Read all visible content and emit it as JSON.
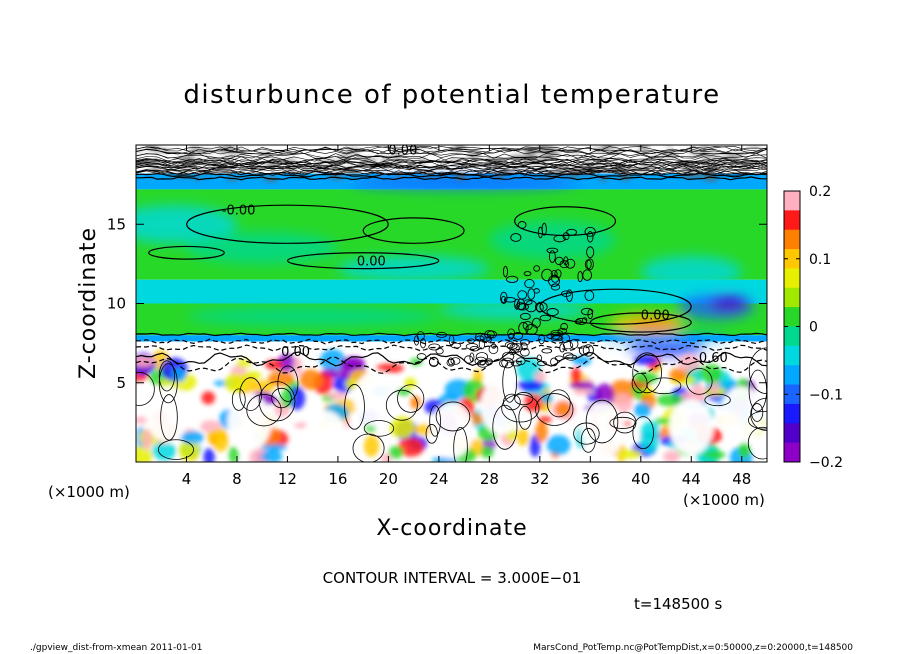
{
  "chart_data": {
    "type": "heatmap",
    "title": "disturbunce of potential temperature",
    "xlabel": "X-coordinate",
    "ylabel": "Z-coordinate",
    "x_unit_left": "(×1000 m)",
    "x_unit_right": "(×1000 m)",
    "xlim": [
      0,
      50
    ],
    "ylim": [
      0,
      20
    ],
    "x_ticks": [
      4,
      8,
      12,
      16,
      20,
      24,
      28,
      32,
      36,
      40,
      44,
      48
    ],
    "y_ticks": [
      5,
      10,
      15
    ],
    "colorbar": {
      "ticks": [
        0.2,
        0.1,
        0,
        -0.1,
        -0.2
      ],
      "tick_labels": [
        "0.2",
        "0.1",
        "0",
        "−0.1",
        "−0.2"
      ],
      "range": [
        -0.2,
        0.2
      ],
      "colors": [
        "#ffb0c0",
        "#ff1a1a",
        "#ff7f00",
        "#ffc800",
        "#e6f000",
        "#a0e800",
        "#28d828",
        "#00d890",
        "#00d8e0",
        "#00a8ff",
        "#1a64ff",
        "#1a1aff",
        "#5000c8",
        "#8c00c8"
      ]
    },
    "contour_labels": [
      "-0.00",
      "0.00",
      "0.00",
      "0.00",
      "0.60",
      "0.00"
    ],
    "contour_interval_text": "CONTOUR INTERVAL = 3.000E−01",
    "time_text": "t=148500 s",
    "regions": [
      {
        "z": [
          18,
          20
        ],
        "value": "turbulent",
        "color": "#ffffff"
      },
      {
        "z": [
          17.2,
          18.2
        ],
        "value": -0.08,
        "color": "#00a8ff"
      },
      {
        "z": [
          11.5,
          17.2
        ],
        "value": 0.02,
        "color": "#28d828"
      },
      {
        "z": [
          10,
          11.5
        ],
        "value": -0.02,
        "color": "#00d8e0"
      },
      {
        "z": [
          8,
          10
        ],
        "value": 0.0,
        "color": "#28d828"
      },
      {
        "z": [
          7.6,
          8
        ],
        "value": -0.08,
        "color": "#00a8ff"
      },
      {
        "z": [
          0,
          7.6
        ],
        "value": "turbulent",
        "color": "#ffffff"
      }
    ]
  },
  "footer": {
    "left": "./gpview_dist-from-xmean  2011-01-01",
    "right": "MarsCond_PotTemp.nc@PotTempDist,x=0:50000,z=0:20000,t=148500"
  }
}
